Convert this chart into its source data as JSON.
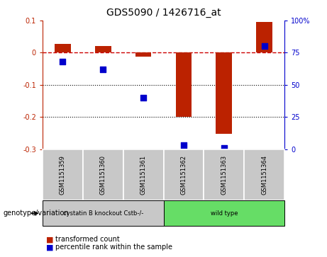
{
  "title": "GDS5090 / 1426716_at",
  "samples": [
    "GSM1151359",
    "GSM1151360",
    "GSM1151361",
    "GSM1151362",
    "GSM1151363",
    "GSM1151364"
  ],
  "red_values": [
    0.028,
    0.02,
    -0.012,
    -0.2,
    -0.252,
    0.095
  ],
  "blue_values_pct": [
    68,
    62,
    40,
    3,
    1,
    80
  ],
  "ylim_left": [
    -0.3,
    0.1
  ],
  "ylim_right": [
    0,
    100
  ],
  "yticks_left": [
    -0.3,
    -0.2,
    -0.1,
    0.0,
    0.1
  ],
  "ytick_labels_left": [
    "-0.3",
    "-0.2",
    "-0.1",
    "0",
    "0.1"
  ],
  "yticks_right": [
    0,
    25,
    50,
    75,
    100
  ],
  "ytick_labels_right": [
    "0",
    "25",
    "50",
    "75",
    "100%"
  ],
  "bar_color_red": "#bb2200",
  "dot_color_blue": "#0000cc",
  "dashed_line_color": "#cc0000",
  "grid_color": "#000000",
  "background_color": "#ffffff",
  "sample_box_color": "#c8c8c8",
  "group_bg_colors": [
    "#c8c8c8",
    "#66dd66"
  ],
  "group_labels": [
    "cystatin B knockout Cstb-/-",
    "wild type"
  ],
  "group_ranges": [
    [
      0,
      2
    ],
    [
      3,
      5
    ]
  ],
  "genotype_label": "genotype/variation",
  "legend_red_label": "transformed count",
  "legend_blue_label": "percentile rank within the sample",
  "bar_width": 0.4
}
